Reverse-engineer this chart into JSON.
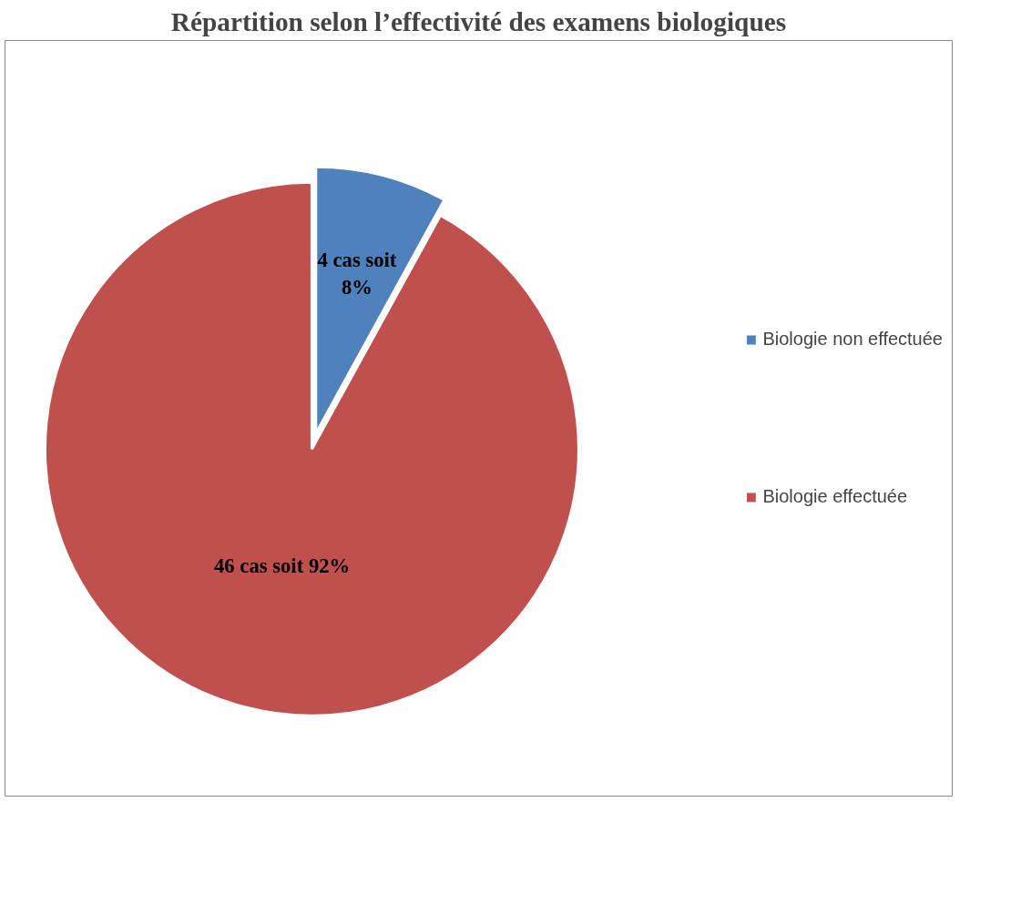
{
  "chart_data": {
    "type": "pie",
    "title": "Répartition selon l’effectivité des examens biologiques",
    "categories": [
      "Biologie non effectuée",
      "Biologie effectuée"
    ],
    "values": [
      4,
      46
    ],
    "colors": [
      "#4f81bd",
      "#c0504d"
    ],
    "value_labels": [
      "4 cas soit\n8%",
      "46 cas soit 92%"
    ],
    "legend": "right"
  }
}
